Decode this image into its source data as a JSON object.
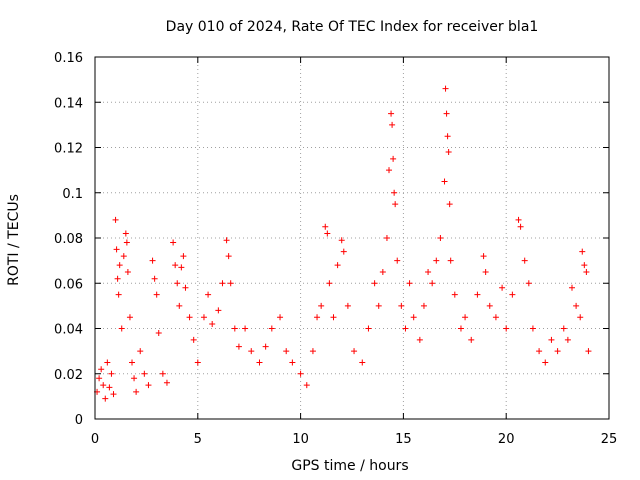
{
  "chart_data": {
    "type": "scatter",
    "title": "Day 010 of 2024, Rate Of TEC Index for receiver bla1",
    "xlabel": "GPS time / hours",
    "ylabel": "ROTI / TECUs",
    "xlim": [
      0,
      25
    ],
    "ylim": [
      0,
      0.16
    ],
    "xticks": [
      "0",
      "5",
      "10",
      "15",
      "20",
      "25"
    ],
    "yticks": [
      "0",
      "0.02",
      "0.04",
      "0.06",
      "0.08",
      "0.1",
      "0.12",
      "0.14",
      "0.16"
    ],
    "grid": true,
    "marker": "plus",
    "color": "#ff0000",
    "series": [
      {
        "points": [
          [
            0.1,
            0.012
          ],
          [
            0.2,
            0.018
          ],
          [
            0.3,
            0.022
          ],
          [
            0.4,
            0.015
          ],
          [
            0.5,
            0.009
          ],
          [
            0.6,
            0.025
          ],
          [
            0.7,
            0.014
          ],
          [
            0.8,
            0.02
          ],
          [
            0.9,
            0.011
          ],
          [
            1.0,
            0.088
          ],
          [
            1.05,
            0.075
          ],
          [
            1.1,
            0.062
          ],
          [
            1.15,
            0.055
          ],
          [
            1.2,
            0.068
          ],
          [
            1.3,
            0.04
          ],
          [
            1.4,
            0.072
          ],
          [
            1.5,
            0.082
          ],
          [
            1.55,
            0.078
          ],
          [
            1.6,
            0.065
          ],
          [
            1.7,
            0.045
          ],
          [
            1.8,
            0.025
          ],
          [
            1.9,
            0.018
          ],
          [
            2.0,
            0.012
          ],
          [
            2.2,
            0.03
          ],
          [
            2.4,
            0.02
          ],
          [
            2.6,
            0.015
          ],
          [
            2.8,
            0.07
          ],
          [
            2.9,
            0.062
          ],
          [
            3.0,
            0.055
          ],
          [
            3.1,
            0.038
          ],
          [
            3.3,
            0.02
          ],
          [
            3.5,
            0.016
          ],
          [
            3.8,
            0.078
          ],
          [
            3.9,
            0.068
          ],
          [
            4.0,
            0.06
          ],
          [
            4.1,
            0.05
          ],
          [
            4.2,
            0.067
          ],
          [
            4.3,
            0.072
          ],
          [
            4.4,
            0.058
          ],
          [
            4.6,
            0.045
          ],
          [
            4.8,
            0.035
          ],
          [
            5.0,
            0.025
          ],
          [
            5.3,
            0.045
          ],
          [
            5.5,
            0.055
          ],
          [
            5.7,
            0.042
          ],
          [
            6.0,
            0.048
          ],
          [
            6.2,
            0.06
          ],
          [
            6.4,
            0.079
          ],
          [
            6.5,
            0.072
          ],
          [
            6.6,
            0.06
          ],
          [
            6.8,
            0.04
          ],
          [
            7.0,
            0.032
          ],
          [
            7.3,
            0.04
          ],
          [
            7.6,
            0.03
          ],
          [
            8.0,
            0.025
          ],
          [
            8.3,
            0.032
          ],
          [
            8.6,
            0.04
          ],
          [
            9.0,
            0.045
          ],
          [
            9.3,
            0.03
          ],
          [
            9.6,
            0.025
          ],
          [
            10.0,
            0.02
          ],
          [
            10.3,
            0.015
          ],
          [
            10.6,
            0.03
          ],
          [
            10.8,
            0.045
          ],
          [
            11.0,
            0.05
          ],
          [
            11.2,
            0.085
          ],
          [
            11.3,
            0.082
          ],
          [
            11.4,
            0.06
          ],
          [
            11.6,
            0.045
          ],
          [
            11.8,
            0.068
          ],
          [
            12.0,
            0.079
          ],
          [
            12.1,
            0.074
          ],
          [
            12.3,
            0.05
          ],
          [
            12.6,
            0.03
          ],
          [
            13.0,
            0.025
          ],
          [
            13.3,
            0.04
          ],
          [
            13.6,
            0.06
          ],
          [
            13.8,
            0.05
          ],
          [
            14.0,
            0.065
          ],
          [
            14.2,
            0.08
          ],
          [
            14.3,
            0.11
          ],
          [
            14.4,
            0.135
          ],
          [
            14.45,
            0.13
          ],
          [
            14.5,
            0.115
          ],
          [
            14.55,
            0.1
          ],
          [
            14.6,
            0.095
          ],
          [
            14.7,
            0.07
          ],
          [
            14.9,
            0.05
          ],
          [
            15.1,
            0.04
          ],
          [
            15.3,
            0.06
          ],
          [
            15.5,
            0.045
          ],
          [
            15.8,
            0.035
          ],
          [
            16.0,
            0.05
          ],
          [
            16.2,
            0.065
          ],
          [
            16.4,
            0.06
          ],
          [
            16.6,
            0.07
          ],
          [
            16.8,
            0.08
          ],
          [
            17.0,
            0.105
          ],
          [
            17.05,
            0.146
          ],
          [
            17.1,
            0.135
          ],
          [
            17.15,
            0.125
          ],
          [
            17.2,
            0.118
          ],
          [
            17.25,
            0.095
          ],
          [
            17.3,
            0.07
          ],
          [
            17.5,
            0.055
          ],
          [
            17.8,
            0.04
          ],
          [
            18.0,
            0.045
          ],
          [
            18.3,
            0.035
          ],
          [
            18.6,
            0.055
          ],
          [
            18.9,
            0.072
          ],
          [
            19.0,
            0.065
          ],
          [
            19.2,
            0.05
          ],
          [
            19.5,
            0.045
          ],
          [
            19.8,
            0.058
          ],
          [
            20.0,
            0.04
          ],
          [
            20.3,
            0.055
          ],
          [
            20.6,
            0.088
          ],
          [
            20.7,
            0.085
          ],
          [
            20.9,
            0.07
          ],
          [
            21.1,
            0.06
          ],
          [
            21.3,
            0.04
          ],
          [
            21.6,
            0.03
          ],
          [
            21.9,
            0.025
          ],
          [
            22.2,
            0.035
          ],
          [
            22.5,
            0.03
          ],
          [
            22.8,
            0.04
          ],
          [
            23.0,
            0.035
          ],
          [
            23.2,
            0.058
          ],
          [
            23.4,
            0.05
          ],
          [
            23.6,
            0.045
          ],
          [
            23.7,
            0.074
          ],
          [
            23.8,
            0.068
          ],
          [
            23.9,
            0.065
          ],
          [
            24.0,
            0.03
          ]
        ]
      }
    ]
  }
}
